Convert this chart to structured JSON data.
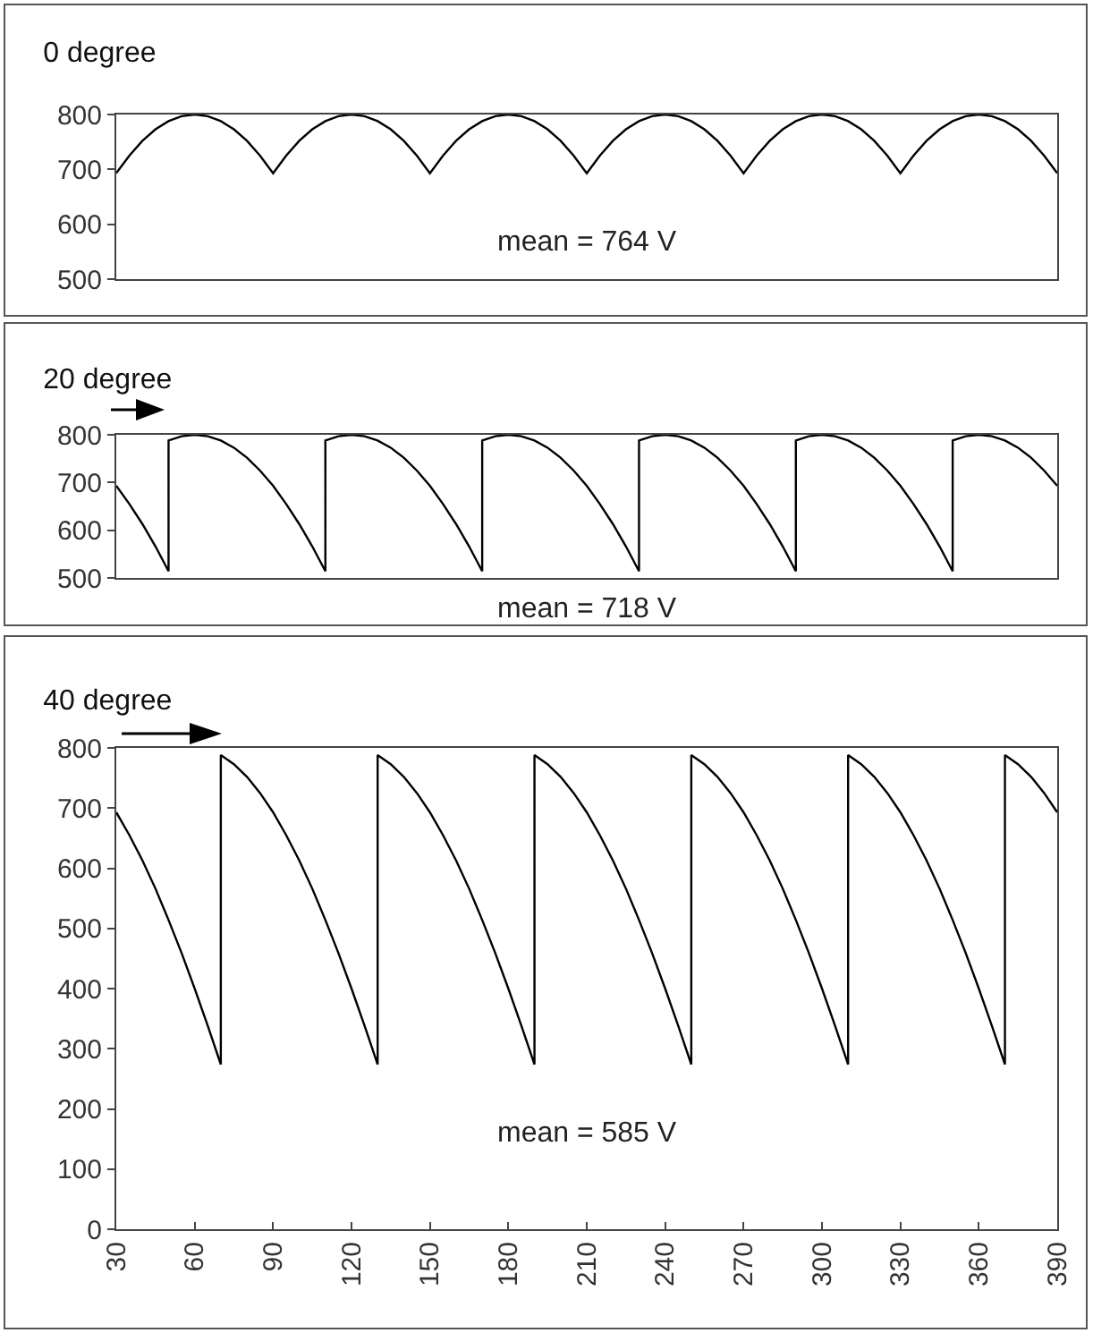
{
  "chart_data": [
    {
      "type": "line",
      "title": "0 degree",
      "xlim": [
        30,
        390
      ],
      "ylim": [
        500,
        800
      ],
      "yticks": [
        500,
        600,
        700,
        800
      ],
      "tick_labels": "y",
      "annotations": [
        "mean = 764 V"
      ],
      "series": [
        {
          "color": "#000000",
          "x": [
            30,
            35,
            40,
            45,
            50,
            55,
            60,
            65,
            70,
            75,
            80,
            85,
            90,
            95,
            100,
            105,
            110,
            115,
            120,
            125,
            130,
            135,
            140,
            145,
            150,
            155,
            160,
            165,
            170,
            175,
            180,
            185,
            190,
            195,
            200,
            205,
            210,
            215,
            220,
            225,
            230,
            235,
            240,
            245,
            250,
            255,
            260,
            265,
            270,
            275,
            280,
            285,
            290,
            295,
            300,
            305,
            310,
            315,
            320,
            325,
            330,
            335,
            340,
            345,
            350,
            355,
            360,
            365,
            370,
            375,
            380,
            385,
            390
          ],
          "values": [
            693,
            725,
            752,
            773,
            788,
            797,
            800,
            797,
            788,
            773,
            752,
            725,
            693,
            725,
            752,
            773,
            788,
            797,
            800,
            797,
            788,
            773,
            752,
            725,
            693,
            725,
            752,
            773,
            788,
            797,
            800,
            797,
            788,
            773,
            752,
            725,
            693,
            725,
            752,
            773,
            788,
            797,
            800,
            797,
            788,
            773,
            752,
            725,
            693,
            725,
            752,
            773,
            788,
            797,
            800,
            797,
            788,
            773,
            752,
            725,
            693,
            725,
            752,
            773,
            788,
            797,
            800,
            797,
            788,
            773,
            752,
            725,
            693
          ]
        }
      ]
    },
    {
      "type": "line",
      "title": "20 degree",
      "xlim": [
        30,
        390
      ],
      "ylim": [
        500,
        800
      ],
      "yticks": [
        500,
        600,
        700,
        800
      ],
      "tick_labels": "y",
      "annotations": [
        "mean = 718 V"
      ],
      "series": [
        {
          "color": "#000000",
          "x": [
            30,
            35,
            40,
            45,
            50,
            50,
            55,
            60,
            65,
            70,
            75,
            80,
            85,
            90,
            95,
            100,
            105,
            110,
            110,
            115,
            120,
            125,
            130,
            135,
            140,
            145,
            150,
            155,
            160,
            165,
            170,
            170,
            175,
            180,
            185,
            190,
            195,
            200,
            205,
            210,
            215,
            220,
            225,
            230,
            230,
            235,
            240,
            245,
            250,
            255,
            260,
            265,
            270,
            275,
            280,
            285,
            290,
            290,
            295,
            300,
            305,
            310,
            315,
            320,
            325,
            330,
            335,
            340,
            345,
            350,
            350,
            355,
            360,
            365,
            370,
            375,
            380,
            385,
            390
          ],
          "values": [
            693,
            655,
            613,
            566,
            514,
            788,
            797,
            800,
            797,
            788,
            773,
            752,
            725,
            693,
            655,
            613,
            566,
            514,
            788,
            797,
            800,
            797,
            788,
            773,
            752,
            725,
            693,
            655,
            613,
            566,
            514,
            788,
            797,
            800,
            797,
            788,
            773,
            752,
            725,
            693,
            655,
            613,
            566,
            514,
            788,
            797,
            800,
            797,
            788,
            773,
            752,
            725,
            693,
            655,
            613,
            566,
            514,
            788,
            797,
            800,
            797,
            788,
            773,
            752,
            725,
            693,
            655,
            613,
            566,
            514,
            788,
            797,
            800,
            797,
            788,
            773,
            752,
            725,
            693
          ]
        }
      ]
    },
    {
      "type": "line",
      "title": "40 degree",
      "xlim": [
        30,
        390
      ],
      "xticks": [
        30,
        60,
        90,
        120,
        150,
        180,
        210,
        240,
        270,
        300,
        330,
        360,
        390
      ],
      "ylim": [
        0,
        800
      ],
      "yticks": [
        0,
        100,
        200,
        300,
        400,
        500,
        600,
        700,
        800
      ],
      "annotations": [
        "mean = 585 V"
      ],
      "series": [
        {
          "color": "#000000",
          "x": [
            30,
            35,
            40,
            45,
            50,
            55,
            60,
            65,
            70,
            70,
            75,
            80,
            85,
            90,
            95,
            100,
            105,
            110,
            115,
            120,
            125,
            130,
            130,
            135,
            140,
            145,
            150,
            155,
            160,
            165,
            170,
            175,
            180,
            185,
            190,
            190,
            195,
            200,
            205,
            210,
            215,
            220,
            225,
            230,
            235,
            240,
            245,
            250,
            250,
            255,
            260,
            265,
            270,
            275,
            280,
            285,
            290,
            295,
            300,
            305,
            310,
            310,
            315,
            320,
            325,
            330,
            335,
            340,
            345,
            350,
            355,
            360,
            365,
            370,
            370,
            375,
            380,
            385,
            390
          ],
          "values": [
            693,
            655,
            613,
            566,
            514,
            459,
            400,
            338,
            274,
            788,
            773,
            752,
            725,
            693,
            655,
            613,
            566,
            514,
            459,
            400,
            338,
            274,
            788,
            773,
            752,
            725,
            693,
            655,
            613,
            566,
            514,
            459,
            400,
            338,
            274,
            788,
            773,
            752,
            725,
            693,
            655,
            613,
            566,
            514,
            459,
            400,
            338,
            274,
            788,
            773,
            752,
            725,
            693,
            655,
            613,
            566,
            514,
            459,
            400,
            338,
            274,
            788,
            773,
            752,
            725,
            693,
            655,
            613,
            566,
            514,
            459,
            400,
            338,
            274,
            788,
            773,
            752,
            725,
            693
          ]
        }
      ]
    }
  ]
}
